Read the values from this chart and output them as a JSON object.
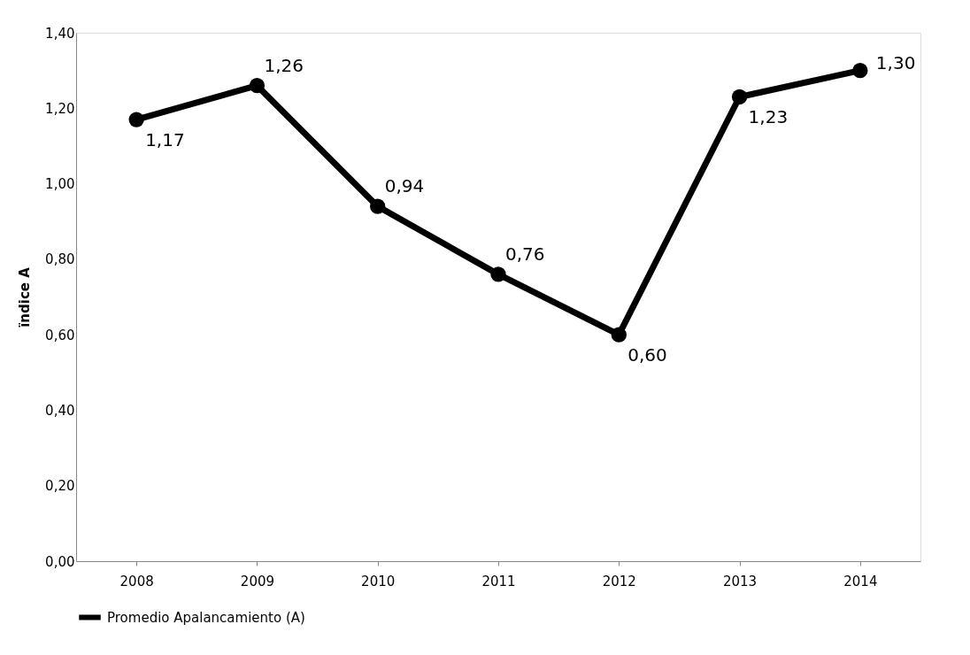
{
  "chart_data": {
    "type": "line",
    "ylabel": "ïndice A",
    "categories": [
      "2008",
      "2009",
      "2010",
      "2011",
      "2012",
      "2013",
      "2014"
    ],
    "series": [
      {
        "name": "Promedio Apalancamiento (A)",
        "color": "#000000",
        "values": [
          1.17,
          1.26,
          0.94,
          0.76,
          0.6,
          1.23,
          1.3
        ],
        "value_labels": [
          "1,17",
          "1,26",
          "0,94",
          "0,76",
          "0,60",
          "1,23",
          "1,30"
        ]
      }
    ],
    "ylim": [
      0,
      1.4
    ],
    "yticks": [
      {
        "value": 0,
        "label": "0,00"
      },
      {
        "value": 0.2,
        "label": "0,20"
      },
      {
        "value": 0.4,
        "label": "0,40"
      },
      {
        "value": 0.6,
        "label": "0,60"
      },
      {
        "value": 0.8,
        "label": "0,80"
      },
      {
        "value": 1.0,
        "label": "1,00"
      },
      {
        "value": 1.2,
        "label": "1,20"
      },
      {
        "value": 1.4,
        "label": "1,40"
      }
    ],
    "grid": false,
    "legend": "bottom",
    "marker": "circle",
    "line_style": "solid"
  }
}
